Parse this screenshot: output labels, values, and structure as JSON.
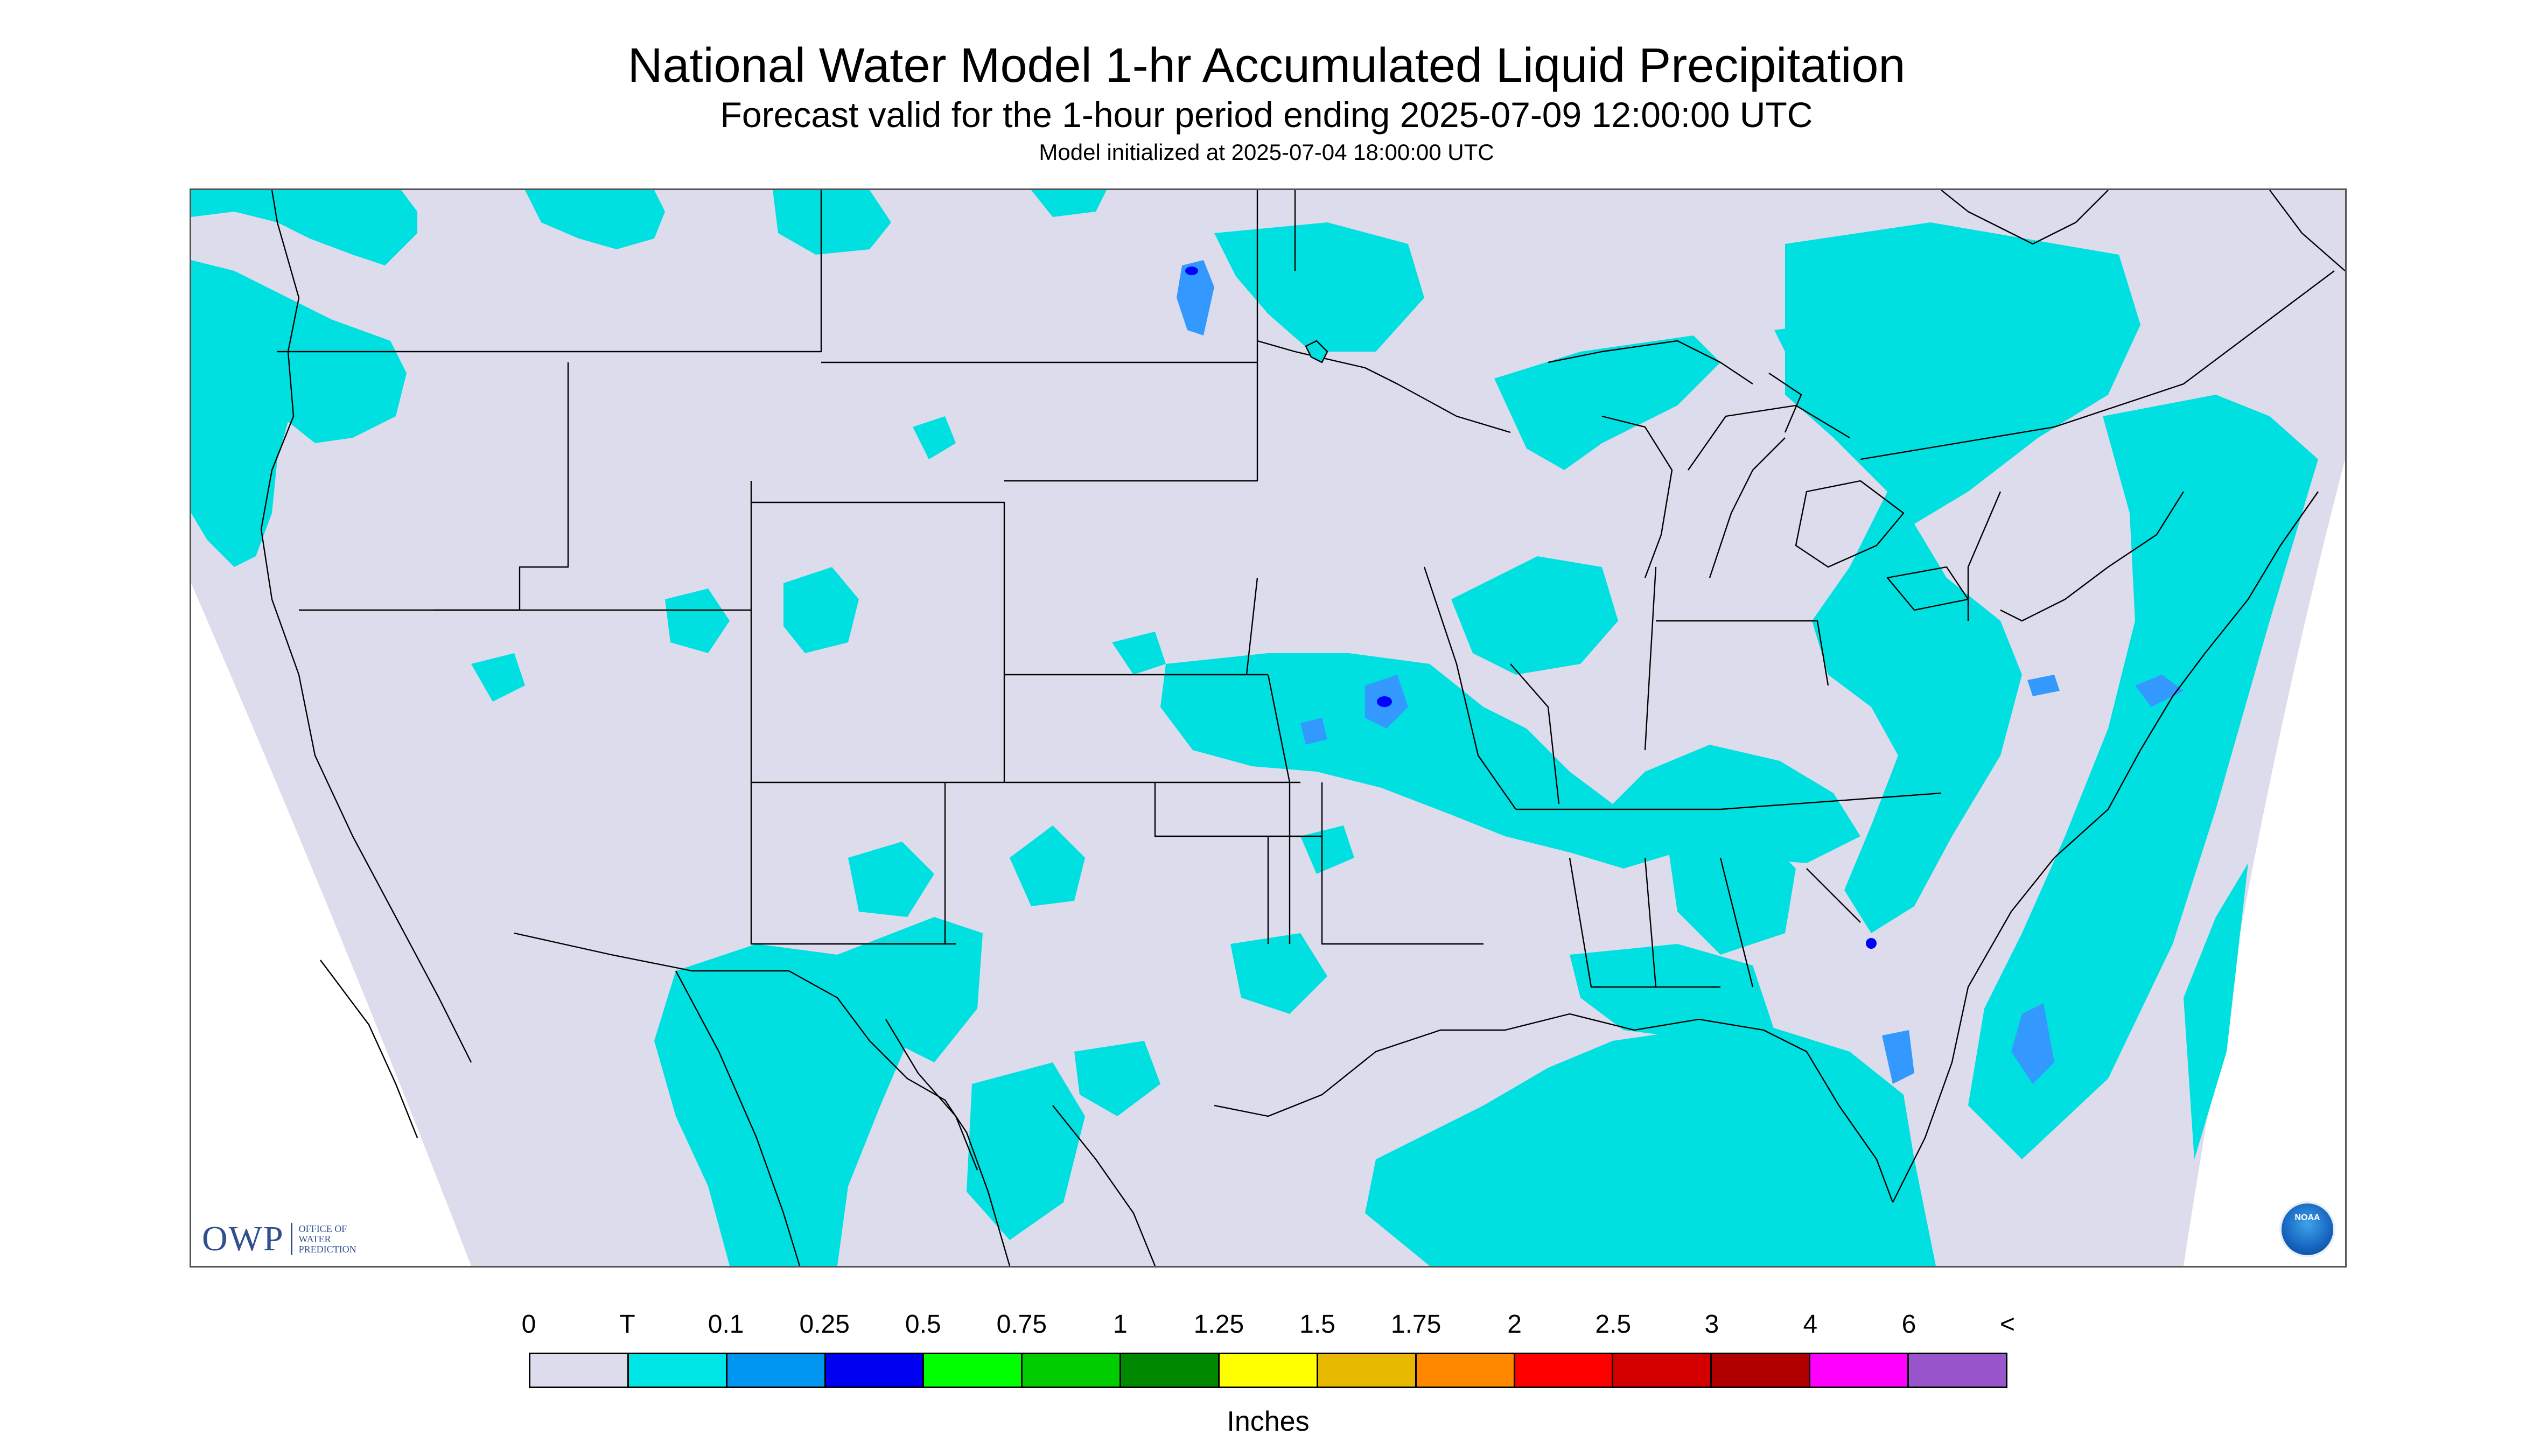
{
  "header": {
    "title": "National Water Model 1-hr Accumulated Liquid Precipitation",
    "subtitle": "Forecast valid for the 1-hour period ending 2025-07-09 12:00:00 UTC",
    "init": "Model initialized at 2025-07-04 18:00:00 UTC"
  },
  "map": {
    "no_data_color": "#ffffff",
    "zero_color": "#dcdcec",
    "boundary_color": "#000000",
    "precip_color": "#00e0e0",
    "moderate_color": "#3399ff",
    "heavy_color": "#0000ff"
  },
  "logos": {
    "owp_mark": "OWP",
    "owp_text": [
      "OFFICE OF",
      "WATER",
      "PREDICTION"
    ],
    "noaa": "NOAA"
  },
  "legend": {
    "labels": [
      "0",
      "T",
      "0.1",
      "0.25",
      "0.5",
      "0.75",
      "1",
      "1.25",
      "1.5",
      "1.75",
      "2",
      "2.5",
      "3",
      "4",
      "6",
      "<"
    ],
    "colors": [
      "#dcdcec",
      "#00e5e5",
      "#0096ef",
      "#0000f0",
      "#00ff00",
      "#00cc00",
      "#008800",
      "#ffff00",
      "#e6b800",
      "#ff8800",
      "#ff0000",
      "#d40000",
      "#b00000",
      "#ff00ff",
      "#9955cc"
    ],
    "units": "Inches"
  }
}
